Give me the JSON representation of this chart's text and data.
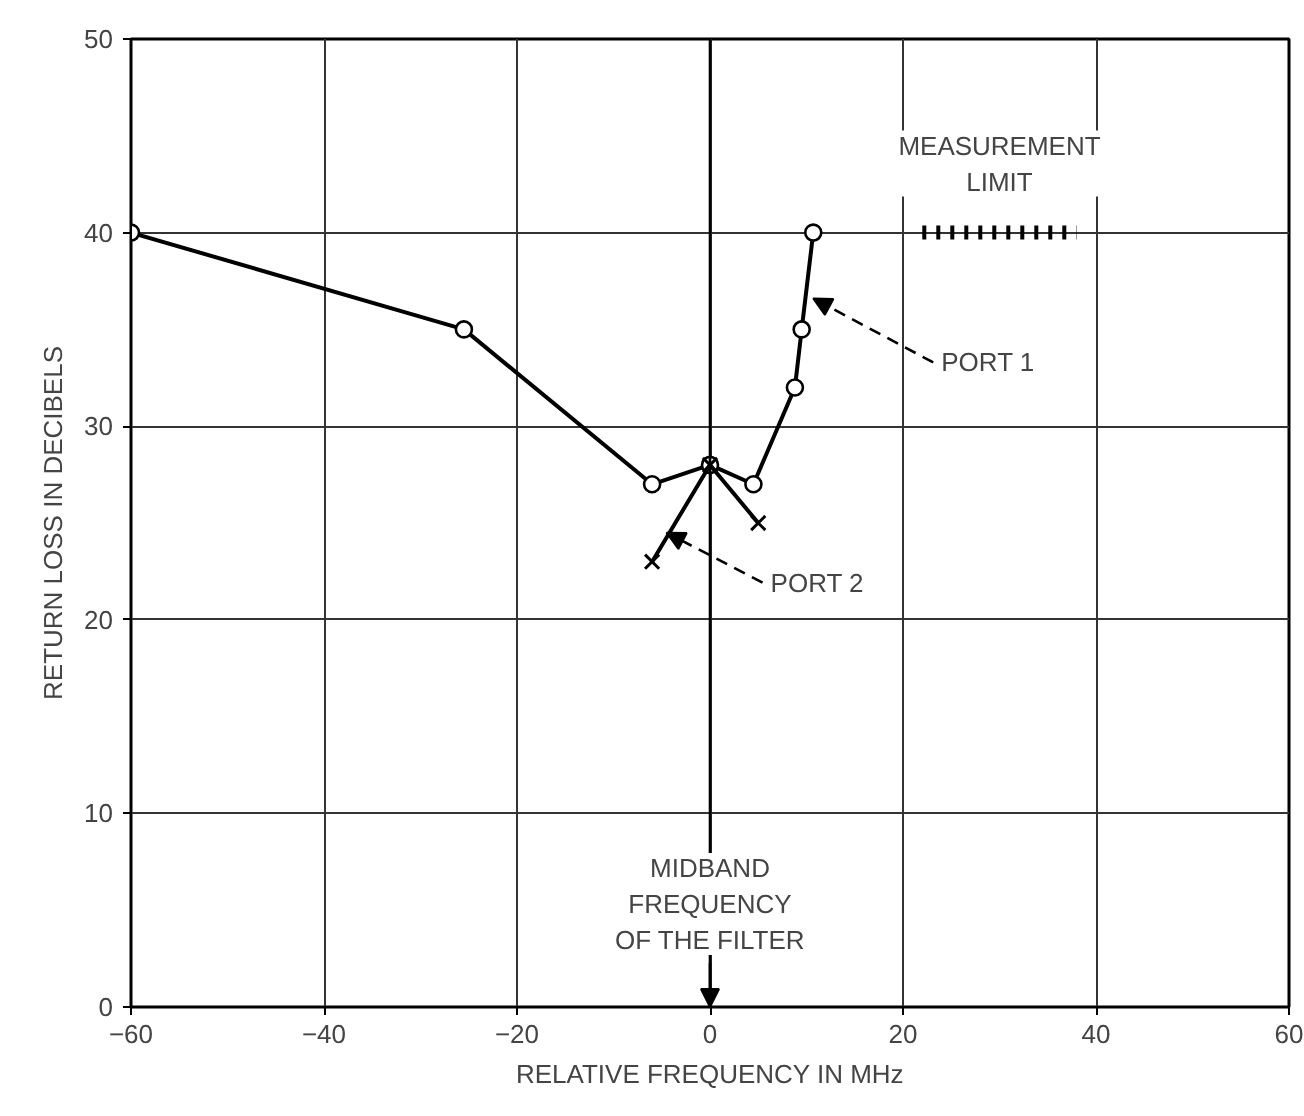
{
  "chart_data": {
    "type": "line",
    "xlabel": "RELATIVE FREQUENCY IN MHz",
    "ylabel": "RETURN LOSS IN DECIBELS",
    "xlim": [
      -60,
      60
    ],
    "ylim": [
      0,
      50
    ],
    "xticks": [
      -60,
      -40,
      -20,
      0,
      20,
      40,
      60
    ],
    "yticks": [
      0,
      10,
      20,
      30,
      40,
      50
    ],
    "grid": true,
    "series": [
      {
        "color": "#000000",
        "marker": "circle",
        "x": [
          -60,
          -25.5,
          -6,
          0,
          4.5,
          8.8,
          9.5,
          10.7
        ],
        "values": [
          40,
          35,
          27,
          28,
          27,
          32,
          35,
          40
        ]
      },
      {
        "color": "#000000",
        "marker": "cross",
        "x": [
          -6,
          0,
          5
        ],
        "values": [
          23,
          28,
          25
        ]
      },
      {
        "name": "MEASUREMENT\nLIMIT",
        "color": "#000000",
        "line_style": "dashed",
        "x": [
          22,
          38
        ],
        "values": [
          40,
          40
        ]
      }
    ],
    "ref_lines": [
      {
        "axis": "x",
        "value": 0,
        "label": "MIDBAND\nFREQUENCY\nOF THE FILTER",
        "color": "#000000"
      }
    ],
    "annotations": [
      {
        "text": "PORT 1",
        "x": 10.7,
        "y": 36.6
      },
      {
        "text": "PORT 2",
        "x": -4.5,
        "y": 24.5
      }
    ]
  }
}
